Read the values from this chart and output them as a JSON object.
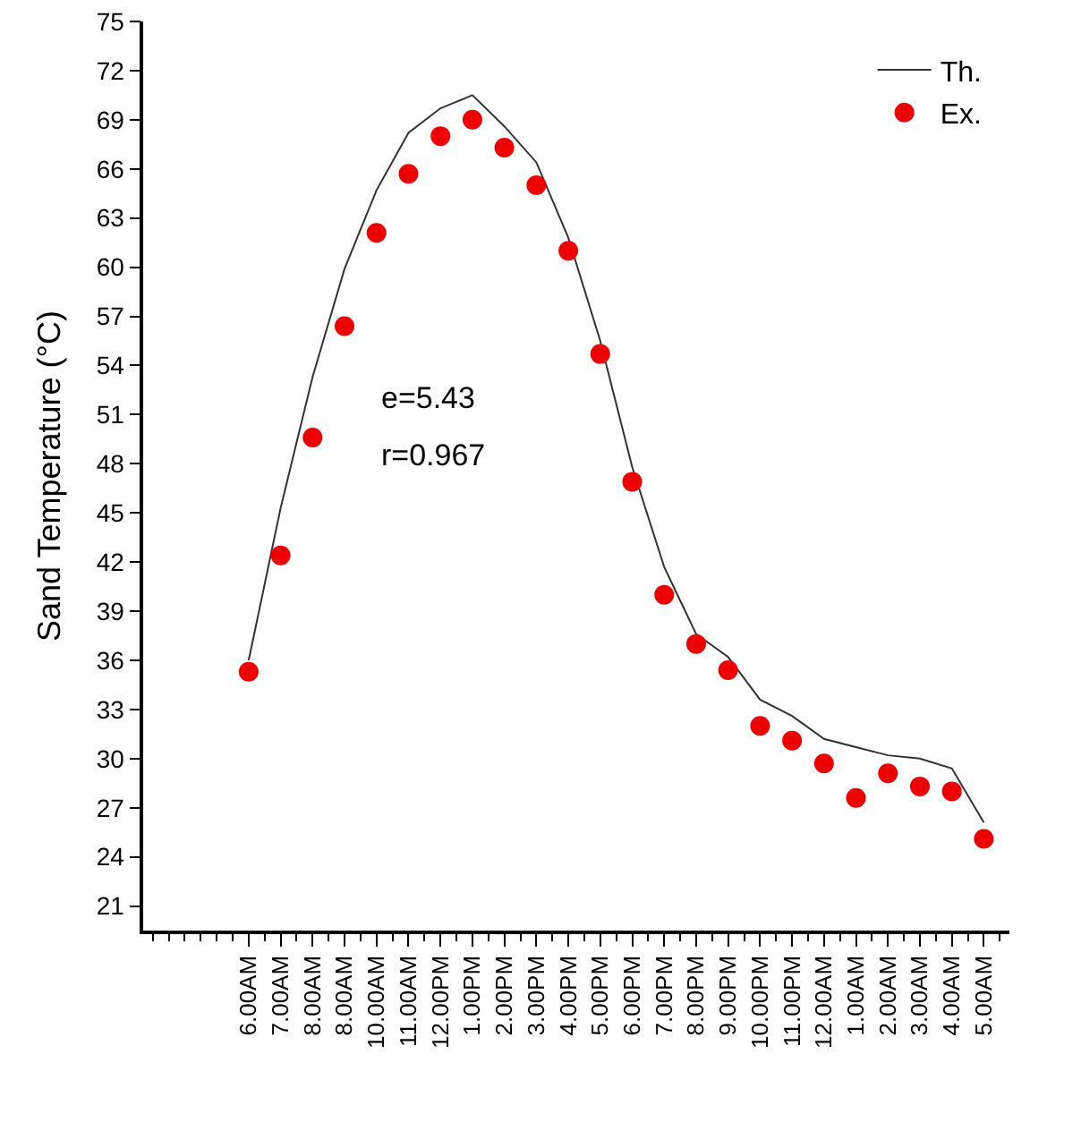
{
  "chart_data": {
    "type": "line",
    "ylabel": "Sand Temperature (°C)",
    "categories": [
      "6.00AM",
      "7.00AM",
      "8.00AM",
      "8.00AM",
      "10.00AM",
      "11.00AM",
      "12.00PM",
      "1.00PM",
      "2.00PM",
      "3.00PM",
      "4.00PM",
      "5.00PM",
      "6.00PM",
      "7.00PM",
      "8.00PM",
      "9.00PM",
      "10.00PM",
      "11.00PM",
      "12.00AM",
      "1.00AM",
      "2.00AM",
      "3.00AM",
      "4.00AM",
      "5.00AM"
    ],
    "series": [
      {
        "name": "Th.",
        "color": "#333333",
        "line_style": "solid",
        "marker": "none",
        "values": [
          36.0,
          45.3,
          53.3,
          59.9,
          64.7,
          68.2,
          69.7,
          70.5,
          68.6,
          66.4,
          61.8,
          55.5,
          47.8,
          41.7,
          37.6,
          36.2,
          33.6,
          32.6,
          31.2,
          30.7,
          30.2,
          30.0,
          29.4,
          26.1
        ]
      },
      {
        "name": "Ex.",
        "type": "scatter",
        "color": "#ee0000",
        "marker": "circle",
        "values": [
          35.3,
          42.4,
          49.6,
          56.4,
          62.1,
          65.7,
          68.0,
          69.0,
          67.3,
          65.0,
          61.0,
          54.7,
          46.9,
          40.0,
          37.0,
          35.4,
          32.0,
          31.1,
          29.7,
          27.6,
          29.1,
          28.3,
          28.0,
          25.1
        ]
      }
    ],
    "ylim": [
      19.5,
      75
    ],
    "yticks": [
      21,
      24,
      27,
      30,
      33,
      36,
      39,
      42,
      45,
      48,
      51,
      54,
      57,
      60,
      63,
      66,
      69,
      72,
      75
    ],
    "grid": false,
    "legend": "top right",
    "annotations": [
      "e=5.43",
      "r=0.967"
    ]
  }
}
